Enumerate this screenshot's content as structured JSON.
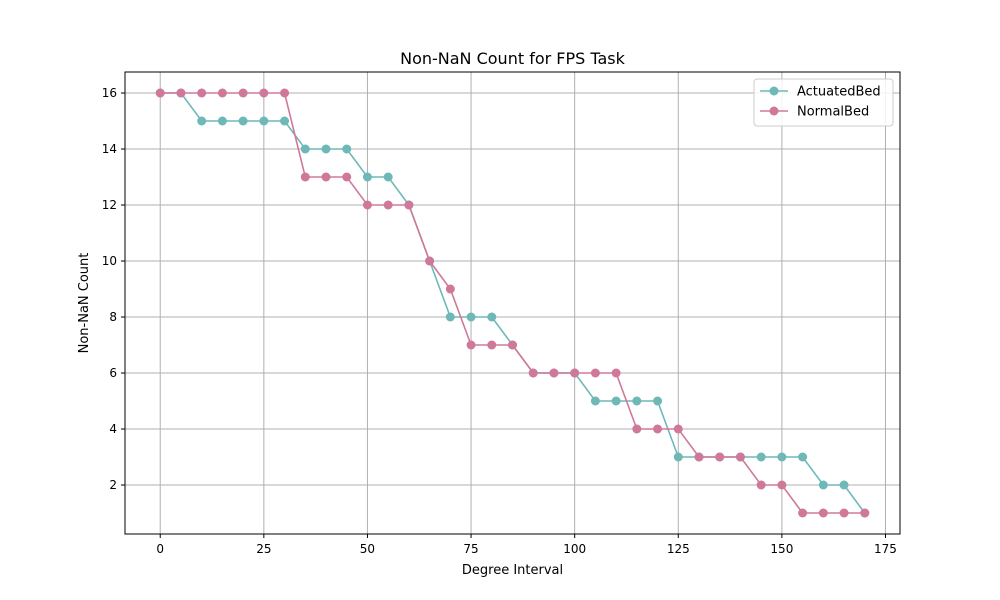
{
  "chart_data": {
    "type": "line",
    "title": "Non-NaN Count for FPS Task",
    "xlabel": "Degree Interval",
    "ylabel": "Non-NaN Count",
    "xlim": [
      -8.5,
      178.5
    ],
    "ylim": [
      0.25,
      16.75
    ],
    "xticks": [
      0,
      25,
      50,
      75,
      100,
      125,
      150,
      175
    ],
    "yticks": [
      2,
      4,
      6,
      8,
      10,
      12,
      14,
      16
    ],
    "grid": true,
    "legend": "top-right",
    "x": [
      0,
      5,
      10,
      15,
      20,
      25,
      30,
      35,
      40,
      45,
      50,
      55,
      60,
      65,
      70,
      75,
      80,
      85,
      90,
      95,
      100,
      105,
      110,
      115,
      120,
      125,
      130,
      135,
      140,
      145,
      150,
      155,
      160,
      165,
      170
    ],
    "series": [
      {
        "name": "ActuatedBed",
        "color": "#6fb8b8",
        "values": [
          16,
          16,
          15,
          15,
          15,
          15,
          15,
          14,
          14,
          14,
          13,
          13,
          12,
          10,
          8,
          8,
          8,
          7,
          6,
          6,
          6,
          5,
          5,
          5,
          5,
          3,
          3,
          3,
          3,
          3,
          3,
          3,
          2,
          2,
          1
        ]
      },
      {
        "name": "NormalBed",
        "color": "#d0789a",
        "values": [
          16,
          16,
          16,
          16,
          16,
          16,
          16,
          13,
          13,
          13,
          12,
          12,
          12,
          10,
          9,
          7,
          7,
          7,
          6,
          6,
          6,
          6,
          6,
          4,
          4,
          4,
          3,
          3,
          3,
          2,
          2,
          1,
          1,
          1,
          1
        ]
      }
    ]
  }
}
